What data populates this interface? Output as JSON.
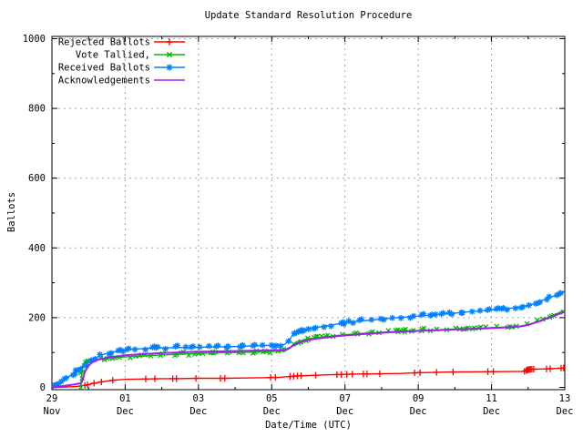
{
  "chart_data": {
    "type": "line",
    "title": "Update Standard Resolution Procedure",
    "xlabel": "Date/Time (UTC)",
    "ylabel": "Ballots",
    "ylim": [
      0,
      1000
    ],
    "yticks": [
      0,
      200,
      400,
      600,
      800,
      1000
    ],
    "y_minor_ticks": [
      100,
      300,
      500,
      700,
      900
    ],
    "x_span_days": 14,
    "xticks": [
      {
        "day": 0,
        "date": "29",
        "month": "Nov"
      },
      {
        "day": 2,
        "date": "01",
        "month": "Dec"
      },
      {
        "day": 4,
        "date": "03",
        "month": "Dec"
      },
      {
        "day": 6,
        "date": "05",
        "month": "Dec"
      },
      {
        "day": 8,
        "date": "07",
        "month": "Dec"
      },
      {
        "day": 10,
        "date": "09",
        "month": "Dec"
      },
      {
        "day": 12,
        "date": "11",
        "month": "Dec"
      },
      {
        "day": 14,
        "date": "13",
        "month": "Dec"
      }
    ],
    "x_minor_ticks": [
      1,
      3,
      5,
      7,
      9,
      11,
      13
    ],
    "grid": true,
    "grid_color": "#a6a6a6",
    "border_color": "#000000",
    "background": "#ffffff",
    "legend_position": "top-left",
    "series": [
      {
        "name": "Rejected Ballots",
        "color": "#ff0000",
        "marker": "plus",
        "line_width": 1.4,
        "points": [
          [
            0,
            0
          ],
          [
            0.4,
            1
          ],
          [
            0.7,
            3
          ],
          [
            0.85,
            5
          ],
          [
            0.95,
            7
          ],
          [
            1.1,
            11
          ],
          [
            1.3,
            15
          ],
          [
            1.5,
            18
          ],
          [
            1.7,
            21
          ],
          [
            2.0,
            23
          ],
          [
            2.5,
            24
          ],
          [
            3.0,
            25
          ],
          [
            3.4,
            25
          ],
          [
            4.0,
            26
          ],
          [
            4.7,
            26
          ],
          [
            5.2,
            27
          ],
          [
            5.9,
            28
          ],
          [
            6.2,
            29
          ],
          [
            6.5,
            31
          ],
          [
            6.7,
            33
          ],
          [
            7.0,
            34
          ],
          [
            7.5,
            36
          ],
          [
            7.9,
            37
          ],
          [
            8.2,
            38
          ],
          [
            8.9,
            39
          ],
          [
            9.5,
            40
          ],
          [
            10.0,
            42
          ],
          [
            10.9,
            44
          ],
          [
            11.9,
            45
          ],
          [
            12.9,
            46
          ],
          [
            13.0,
            51
          ],
          [
            13.1,
            52
          ],
          [
            13.5,
            53
          ],
          [
            13.7,
            54
          ],
          [
            13.9,
            55
          ],
          [
            14.0,
            56
          ]
        ],
        "marker_days": [
          0.9,
          0.97,
          1.15,
          1.35,
          1.66,
          2.56,
          2.81,
          3.3,
          3.4,
          3.93,
          4.6,
          4.72,
          5.97,
          6.1,
          6.5,
          6.6,
          6.7,
          6.8,
          7.2,
          7.78,
          7.9,
          8.05,
          8.2,
          8.5,
          8.6,
          8.95,
          9.9,
          10.05,
          10.5,
          10.95,
          11.9,
          12.05,
          12.9,
          12.95,
          12.98,
          13.0,
          13.03,
          13.06,
          13.1,
          13.15,
          13.5,
          13.6,
          13.9,
          13.97
        ]
      },
      {
        "name": "Vote Tallied,",
        "color": "#00bb00",
        "marker": "cross",
        "line_width": 1.4,
        "marker_spacing": 7,
        "points": [
          [
            0.78,
            0
          ],
          [
            0.8,
            20
          ],
          [
            0.82,
            45
          ],
          [
            0.85,
            65
          ],
          [
            0.9,
            74
          ],
          [
            1.0,
            78
          ],
          [
            1.2,
            81
          ],
          [
            1.5,
            84
          ],
          [
            1.8,
            86
          ],
          [
            2.1,
            88
          ],
          [
            2.5,
            90
          ],
          [
            3.0,
            93
          ],
          [
            3.5,
            95
          ],
          [
            4.0,
            97
          ],
          [
            4.5,
            99
          ],
          [
            5.0,
            100
          ],
          [
            5.5,
            101
          ],
          [
            6.0,
            103
          ],
          [
            6.35,
            104
          ],
          [
            6.5,
            112
          ],
          [
            6.6,
            124
          ],
          [
            6.75,
            132
          ],
          [
            6.95,
            138
          ],
          [
            7.2,
            142
          ],
          [
            7.5,
            146
          ],
          [
            7.8,
            149
          ],
          [
            8.1,
            152
          ],
          [
            8.5,
            155
          ],
          [
            9.0,
            158
          ],
          [
            9.5,
            161
          ],
          [
            10.0,
            163
          ],
          [
            10.5,
            165
          ],
          [
            11.0,
            167
          ],
          [
            11.5,
            169
          ],
          [
            12.0,
            171
          ],
          [
            12.4,
            173
          ],
          [
            12.8,
            176
          ],
          [
            13.0,
            180
          ],
          [
            13.2,
            187
          ],
          [
            13.4,
            195
          ],
          [
            13.6,
            203
          ],
          [
            13.8,
            212
          ],
          [
            14.0,
            222
          ]
        ]
      },
      {
        "name": "Received Ballots",
        "color": "#0080ff",
        "marker": "star",
        "line_width": 1.4,
        "marker_spacing": 6,
        "points": [
          [
            0,
            2
          ],
          [
            0.1,
            6
          ],
          [
            0.25,
            14
          ],
          [
            0.4,
            26
          ],
          [
            0.55,
            38
          ],
          [
            0.7,
            50
          ],
          [
            0.85,
            62
          ],
          [
            1.0,
            73
          ],
          [
            1.15,
            82
          ],
          [
            1.3,
            90
          ],
          [
            1.45,
            96
          ],
          [
            1.6,
            100
          ],
          [
            1.8,
            104
          ],
          [
            2.0,
            107
          ],
          [
            2.3,
            110
          ],
          [
            2.6,
            112
          ],
          [
            3.0,
            113
          ],
          [
            3.5,
            114
          ],
          [
            4.0,
            115
          ],
          [
            4.5,
            116
          ],
          [
            5.0,
            117
          ],
          [
            5.5,
            119
          ],
          [
            5.8,
            120
          ],
          [
            6.1,
            121
          ],
          [
            6.35,
            123
          ],
          [
            6.45,
            132
          ],
          [
            6.55,
            147
          ],
          [
            6.7,
            158
          ],
          [
            6.9,
            165
          ],
          [
            7.1,
            170
          ],
          [
            7.4,
            175
          ],
          [
            7.7,
            180
          ],
          [
            8.0,
            185
          ],
          [
            8.3,
            189
          ],
          [
            8.6,
            192
          ],
          [
            9.0,
            196
          ],
          [
            9.4,
            200
          ],
          [
            9.8,
            203
          ],
          [
            10.2,
            206
          ],
          [
            10.6,
            210
          ],
          [
            11.0,
            213
          ],
          [
            11.4,
            217
          ],
          [
            11.8,
            220
          ],
          [
            12.2,
            224
          ],
          [
            12.6,
            228
          ],
          [
            12.9,
            232
          ],
          [
            13.1,
            238
          ],
          [
            13.3,
            246
          ],
          [
            13.5,
            254
          ],
          [
            13.7,
            262
          ],
          [
            13.85,
            268
          ],
          [
            14.0,
            276
          ]
        ]
      },
      {
        "name": "Acknowledgements",
        "color": "#a020f0",
        "marker": "none",
        "line_width": 2,
        "points": [
          [
            0,
            0
          ],
          [
            0.3,
            4
          ],
          [
            0.6,
            8
          ],
          [
            0.8,
            12
          ],
          [
            0.85,
            25
          ],
          [
            0.9,
            45
          ],
          [
            1.0,
            62
          ],
          [
            1.1,
            72
          ],
          [
            1.25,
            79
          ],
          [
            1.45,
            84
          ],
          [
            1.7,
            88
          ],
          [
            2.0,
            92
          ],
          [
            2.4,
            95
          ],
          [
            2.9,
            98
          ],
          [
            3.4,
            100
          ],
          [
            3.9,
            102
          ],
          [
            4.4,
            103
          ],
          [
            4.9,
            104
          ],
          [
            5.4,
            105
          ],
          [
            5.9,
            106
          ],
          [
            6.35,
            107
          ],
          [
            6.5,
            114
          ],
          [
            6.65,
            124
          ],
          [
            6.85,
            132
          ],
          [
            7.1,
            138
          ],
          [
            7.4,
            142
          ],
          [
            7.7,
            146
          ],
          [
            8.0,
            149
          ],
          [
            8.4,
            152
          ],
          [
            8.8,
            155
          ],
          [
            9.2,
            158
          ],
          [
            9.6,
            160
          ],
          [
            10.0,
            162
          ],
          [
            10.5,
            164
          ],
          [
            11.0,
            166
          ],
          [
            11.5,
            168
          ],
          [
            12.0,
            170
          ],
          [
            12.4,
            172
          ],
          [
            12.8,
            175
          ],
          [
            13.0,
            179
          ],
          [
            13.2,
            186
          ],
          [
            13.4,
            193
          ],
          [
            13.6,
            201
          ],
          [
            13.8,
            209
          ],
          [
            14.0,
            217
          ]
        ]
      }
    ],
    "legend": [
      "Rejected Ballots",
      "Vote Tallied,",
      "Received Ballots",
      "Acknowledgements"
    ]
  }
}
